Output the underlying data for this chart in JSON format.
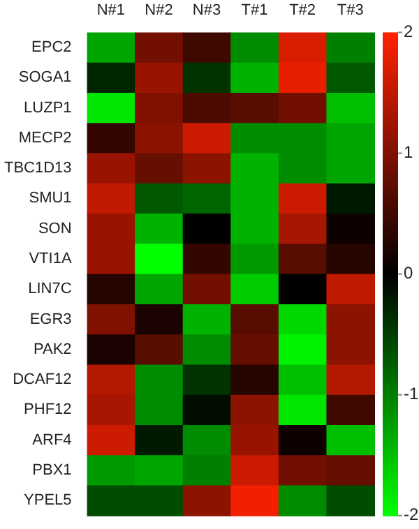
{
  "chart_data": {
    "type": "heatmap",
    "categories": [
      "N#1",
      "N#2",
      "N#3",
      "T#1",
      "T#2",
      "T#3"
    ],
    "y_categories": [
      "EPC2",
      "SOGA1",
      "LUZP1",
      "MECP2",
      "TBC1D13",
      "SMU1",
      "SON",
      "VTI1A",
      "LIN7C",
      "EGR3",
      "PAK2",
      "DCAF12",
      "PHF12",
      "ARF4",
      "PBX1",
      "YPEL5"
    ],
    "cells": [
      [
        -1.3,
        0.9,
        0.5,
        -1.1,
        1.7,
        -1.0
      ],
      [
        -0.3,
        1.2,
        -0.4,
        -1.4,
        1.8,
        -0.7
      ],
      [
        -1.8,
        1.0,
        0.6,
        0.7,
        0.9,
        -1.5
      ],
      [
        0.4,
        1.1,
        1.6,
        -1.1,
        -1.1,
        -1.3
      ],
      [
        1.2,
        0.8,
        1.1,
        -1.4,
        -1.1,
        -1.3
      ],
      [
        1.5,
        -0.7,
        -0.8,
        -1.4,
        1.6,
        -0.2
      ],
      [
        1.2,
        -1.4,
        0.0,
        -1.4,
        1.3,
        0.1
      ],
      [
        1.2,
        -2.0,
        0.4,
        -1.2,
        0.7,
        0.3
      ],
      [
        0.3,
        -1.3,
        0.9,
        -1.6,
        0.0,
        1.5
      ],
      [
        1.0,
        0.2,
        -1.4,
        0.7,
        -1.7,
        1.1
      ],
      [
        0.2,
        0.7,
        -1.1,
        0.8,
        -1.9,
        1.1
      ],
      [
        1.4,
        -1.1,
        -0.4,
        0.3,
        -1.5,
        1.4
      ],
      [
        1.3,
        -1.1,
        -0.1,
        1.1,
        -1.8,
        0.5
      ],
      [
        1.6,
        -0.2,
        -1.1,
        1.2,
        0.1,
        -1.5
      ],
      [
        -1.2,
        -1.3,
        -1.0,
        1.6,
        0.9,
        0.8
      ],
      [
        -0.6,
        -0.6,
        1.1,
        1.9,
        -1.1,
        -0.6
      ]
    ],
    "colors": [
      "#00ff00",
      "#000000",
      "#ff2200"
    ],
    "clim": [
      -2,
      2
    ],
    "cticks": [
      -2,
      -1,
      0,
      1,
      2
    ]
  }
}
